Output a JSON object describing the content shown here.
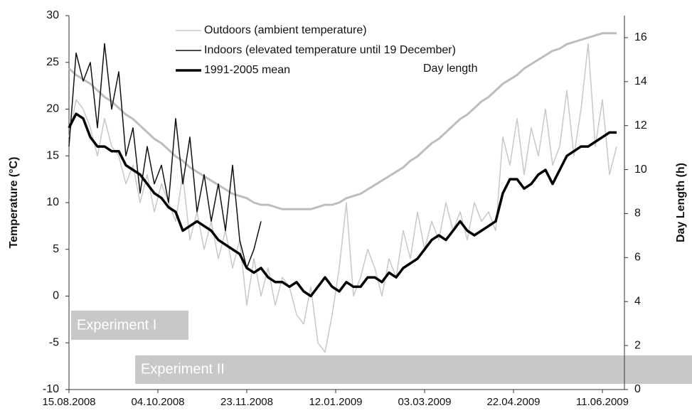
{
  "chart_data": {
    "type": "line",
    "y_label": "Temperature (°C)",
    "y2_label": "Day Length (h)",
    "annotations": [
      "Day length",
      "Experiment I",
      "Experiment II"
    ],
    "xlim": [
      0,
      312.4
    ],
    "xticks": [
      {
        "value": 0,
        "label": "15.08.2008"
      },
      {
        "value": 50,
        "label": "04.10.2008"
      },
      {
        "value": 100,
        "label": "23.11.2008"
      },
      {
        "value": 150,
        "label": "12.01.2009"
      },
      {
        "value": 200,
        "label": "03.03.2009"
      },
      {
        "value": 250,
        "label": "22.04.2009"
      },
      {
        "value": 300,
        "label": "11.06.2009"
      }
    ],
    "ylim": [
      -10,
      30
    ],
    "yticks": [
      -10,
      -5,
      0,
      5,
      10,
      15,
      20,
      25,
      30
    ],
    "y2lim": [
      0,
      17
    ],
    "y2ticks": [
      0,
      2,
      4,
      6,
      8,
      10,
      12,
      14,
      16
    ],
    "x": [
      0,
      4,
      8,
      12,
      16,
      20,
      24,
      28,
      32,
      36,
      40,
      44,
      48,
      52,
      56,
      60,
      64,
      68,
      72,
      76,
      80,
      84,
      88,
      92,
      96,
      100,
      104,
      108,
      112,
      116,
      120,
      124,
      128,
      132,
      136,
      140,
      144,
      148,
      152,
      156,
      160,
      164,
      168,
      172,
      176,
      180,
      184,
      188,
      192,
      196,
      200,
      204,
      208,
      212,
      216,
      220,
      224,
      228,
      232,
      236,
      240,
      244,
      248,
      252,
      256,
      260,
      264,
      268,
      272,
      276,
      280,
      284,
      288,
      292,
      296,
      300,
      304,
      308
    ],
    "series": [
      {
        "name": "Day length",
        "color": "#bdbdbd",
        "axis": "y2",
        "width": 3,
        "values": [
          14.6,
          14.3,
          14.1,
          13.9,
          13.6,
          13.3,
          13.1,
          12.8,
          12.5,
          12.3,
          12.0,
          11.7,
          11.4,
          11.2,
          10.9,
          10.6,
          10.4,
          10.1,
          9.9,
          9.7,
          9.5,
          9.3,
          9.1,
          8.9,
          8.8,
          8.7,
          8.5,
          8.4,
          8.4,
          8.3,
          8.2,
          8.2,
          8.2,
          8.2,
          8.2,
          8.3,
          8.4,
          8.4,
          8.5,
          8.7,
          8.8,
          8.9,
          9.1,
          9.3,
          9.5,
          9.7,
          9.9,
          10.1,
          10.4,
          10.6,
          10.9,
          11.2,
          11.4,
          11.7,
          12.0,
          12.3,
          12.5,
          12.8,
          13.1,
          13.3,
          13.6,
          13.9,
          14.1,
          14.3,
          14.6,
          14.8,
          15.0,
          15.2,
          15.4,
          15.5,
          15.7,
          15.8,
          15.9,
          16.0,
          16.1,
          16.2,
          16.2,
          16.2
        ]
      },
      {
        "name": "Outdoors (ambient temperature)",
        "color": "#c8c8c8",
        "width": 1.5,
        "values": [
          17,
          21,
          20,
          18,
          15,
          19,
          16,
          15,
          12,
          14,
          10,
          13,
          9,
          12,
          10,
          8,
          13,
          6,
          9,
          5,
          8,
          4,
          7,
          3,
          6,
          -1,
          4,
          0,
          3,
          -1,
          2,
          1,
          -2,
          -3,
          1,
          -5,
          -6,
          -2,
          3,
          10,
          0,
          2,
          5,
          3,
          0,
          4,
          2,
          7,
          4,
          9,
          5,
          8,
          6,
          10,
          7,
          9,
          6,
          10,
          8,
          9,
          7,
          17,
          14,
          19,
          13,
          18,
          15,
          20,
          14,
          16,
          22,
          15,
          20,
          27,
          16,
          21,
          13,
          16
        ]
      },
      {
        "name": "Indoors (elevated temperature until 19 December)",
        "color": "#111111",
        "width": 1.5,
        "values": [
          16,
          26,
          23,
          25,
          18,
          27,
          20,
          24,
          15,
          18,
          11,
          16,
          12,
          14,
          10,
          19,
          12,
          17,
          9,
          13,
          8,
          12,
          7,
          14,
          6,
          3,
          5,
          8,
          null,
          null,
          null,
          null,
          null,
          null,
          null,
          null,
          null,
          null,
          null,
          null,
          null,
          null,
          null,
          null,
          null,
          null,
          null,
          null,
          null,
          null,
          null,
          null,
          null,
          null,
          null,
          null,
          null,
          null,
          null,
          null,
          null,
          null,
          null,
          null,
          null,
          null,
          null,
          null,
          null,
          null,
          null,
          null,
          null,
          null,
          null,
          null,
          null,
          null
        ]
      },
      {
        "name": "1991-2005 mean",
        "color": "#000000",
        "width": 3.5,
        "values": [
          18,
          19.5,
          19,
          17,
          16,
          16,
          15.5,
          15.5,
          14,
          13.5,
          13,
          12,
          11,
          10.5,
          9.5,
          9,
          7,
          7.5,
          8,
          7.5,
          7,
          6,
          5.5,
          5,
          4.5,
          3,
          2.5,
          3,
          2,
          1.5,
          1.5,
          1,
          1.5,
          0.5,
          0,
          1,
          2,
          1,
          0.5,
          1.5,
          1,
          1,
          2,
          2,
          1.5,
          2.5,
          2,
          3,
          3.5,
          4,
          5,
          6,
          6.5,
          6,
          7,
          8,
          7,
          6.5,
          7,
          7.5,
          8,
          11,
          12.5,
          12.5,
          11.5,
          12,
          13,
          13.5,
          12,
          13.5,
          15,
          15.5,
          16,
          16,
          16.5,
          17,
          17.5,
          17.5
        ]
      }
    ]
  }
}
